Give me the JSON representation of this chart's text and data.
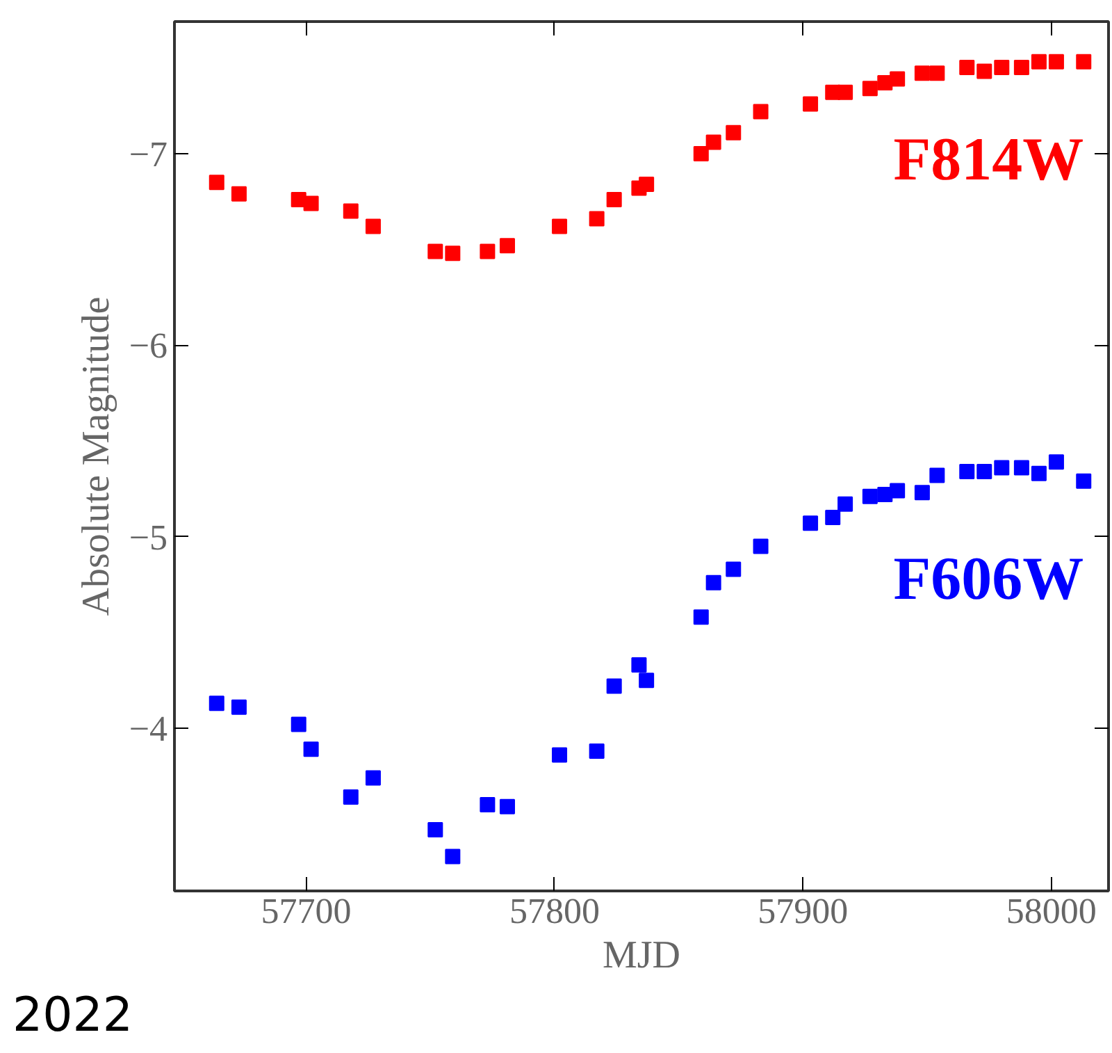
{
  "chart_data": {
    "type": "scatter",
    "xlabel": "MJD",
    "ylabel": "Absolute Magnitude",
    "x": [
      57664,
      57673,
      57697,
      57702,
      57718,
      57727,
      57752,
      57759,
      57773,
      57781,
      57802,
      57817,
      57824,
      57834,
      57837,
      57859,
      57864,
      57872,
      57883,
      57903,
      57912,
      57917,
      57927,
      57933,
      57938,
      57948,
      57954,
      57966,
      57973,
      57980,
      57988,
      57995,
      58002,
      58013
    ],
    "series": [
      {
        "name": "F814W",
        "color": "#ff0000",
        "values": [
          -6.85,
          -6.79,
          -6.76,
          -6.74,
          -6.7,
          -6.62,
          -6.49,
          -6.48,
          -6.49,
          -6.52,
          -6.62,
          -6.66,
          -6.76,
          -6.82,
          -6.84,
          -7.0,
          -7.06,
          -7.11,
          -7.22,
          -7.26,
          -7.32,
          -7.32,
          -7.34,
          -7.37,
          -7.39,
          -7.42,
          -7.42,
          -7.45,
          -7.43,
          -7.45,
          -7.45,
          -7.48,
          -7.48,
          -7.48
        ]
      },
      {
        "name": "F606W",
        "color": "#0000ff",
        "values": [
          -4.13,
          -4.11,
          -4.02,
          -3.89,
          -3.64,
          -3.74,
          -3.47,
          -3.33,
          -3.6,
          -3.59,
          -3.86,
          -3.88,
          -4.22,
          -4.33,
          -4.25,
          -4.58,
          -4.76,
          -4.83,
          -4.95,
          -5.07,
          -5.1,
          -5.17,
          -5.21,
          -5.22,
          -5.24,
          -5.23,
          -5.32,
          -5.34,
          -5.34,
          -5.36,
          -5.36,
          -5.33,
          -5.39,
          -5.29
        ]
      }
    ],
    "xlim": [
      57647,
      58023
    ],
    "ylim": [
      -3.15,
      -7.69
    ],
    "xticks": [
      57700,
      57800,
      57900,
      58000
    ],
    "yticks": [
      {
        "value": -4,
        "label": "−4"
      },
      {
        "value": -5,
        "label": "−5"
      },
      {
        "value": -6,
        "label": "−6"
      },
      {
        "value": -7,
        "label": "−7"
      }
    ],
    "marker": "square",
    "grid": false,
    "legend": false,
    "annotations": [
      "2022"
    ]
  }
}
